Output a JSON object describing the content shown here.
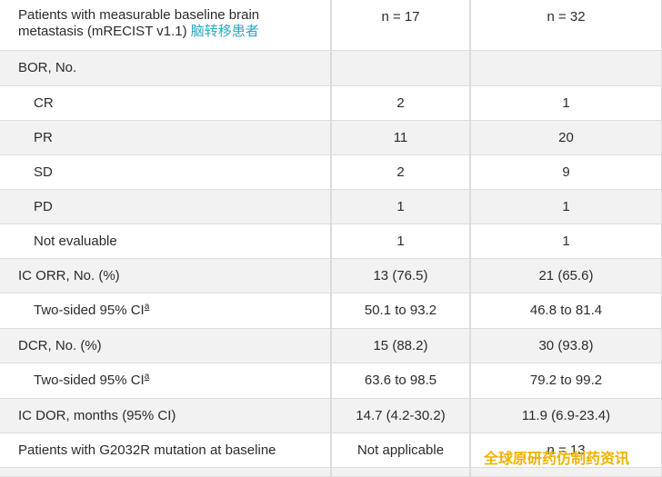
{
  "header": {
    "label_line1": "Patients with measurable baseline brain",
    "label_line2": "metastasis (mRECIST v1.1)",
    "label_cn": "脑转移患者",
    "col2": "n = 17",
    "col3": "n = 32"
  },
  "rows": [
    {
      "label": "BOR, No.",
      "c2": "",
      "c3": ""
    },
    {
      "label": "CR",
      "c2": "2",
      "c3": "1"
    },
    {
      "label": "PR",
      "c2": "11",
      "c3": "20"
    },
    {
      "label": "SD",
      "c2": "2",
      "c3": "9"
    },
    {
      "label": "PD",
      "c2": "1",
      "c3": "1"
    },
    {
      "label": "Not evaluable",
      "c2": "1",
      "c3": "1"
    },
    {
      "label": "IC ORR, No. (%)",
      "c2": "13 (76.5)",
      "c3": "21 (65.6)"
    },
    {
      "label": "Two-sided 95% CI",
      "sup": "a",
      "c2": "50.1 to 93.2",
      "c3": "46.8 to 81.4"
    },
    {
      "label": "DCR, No. (%)",
      "c2": "15 (88.2)",
      "c3": "30 (93.8)"
    },
    {
      "label": "Two-sided 95% CI",
      "sup": "a",
      "c2": "63.6 to 98.5",
      "c3": "79.2 to 99.2"
    },
    {
      "label": "IC DOR, months (95% CI)",
      "c2": "14.7 (4.2-30.2)",
      "c3": "11.9 (6.9-23.4)"
    },
    {
      "label": "Patients with G2032R mutation at baseline",
      "c2": "Not applicable",
      "c3": "n = 13"
    }
  ],
  "watermark": "全球原研药仿制药资讯"
}
